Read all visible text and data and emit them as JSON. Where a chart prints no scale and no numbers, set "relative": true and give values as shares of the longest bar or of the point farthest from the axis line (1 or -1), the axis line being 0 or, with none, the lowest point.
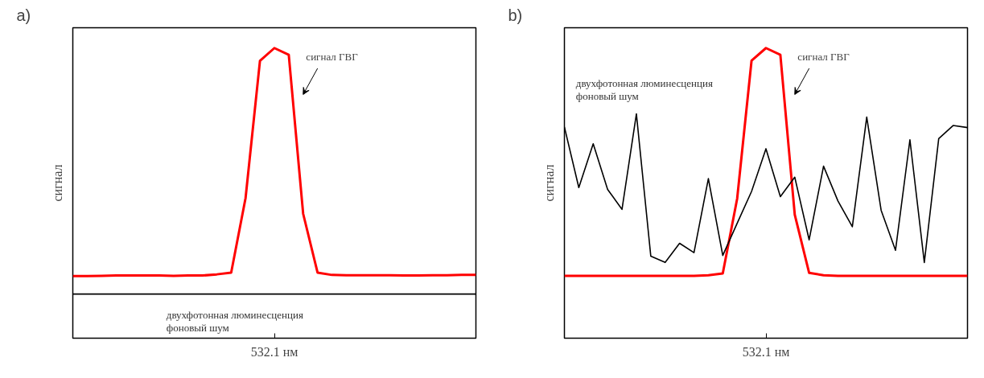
{
  "chart_data": [
    {
      "type": "line",
      "title": "a)",
      "ylabel": "сигнал",
      "xlabel": "532.1 нм",
      "relative": true,
      "grid": false,
      "categories": [
        null,
        null,
        null,
        null,
        null,
        null,
        null,
        null,
        null,
        null,
        null,
        null,
        null,
        null,
        null,
        null,
        null,
        null,
        null,
        null,
        null,
        null,
        null,
        null,
        null,
        null,
        null,
        null,
        null
      ],
      "series": [
        {
          "color": "#ff0000",
          "values": [
            0.214,
            0.214,
            0.215,
            0.216,
            0.216,
            0.216,
            0.216,
            0.215,
            0.216,
            0.216,
            0.22,
            0.226,
            0.483,
            0.956,
            1,
            0.977,
            0.429,
            0.226,
            0.218,
            0.217,
            0.217,
            0.217,
            0.217,
            0.216,
            0.216,
            0.217,
            0.217,
            0.218,
            0.218
          ]
        },
        {
          "color": "#000000",
          "values": [
            0.152,
            0.152,
            0.152,
            0.152,
            0.152,
            0.152,
            0.152,
            0.152,
            0.152,
            0.152,
            0.152,
            0.152,
            0.152,
            0.152,
            0.152,
            0.152,
            0.152,
            0.152,
            0.152,
            0.152,
            0.152,
            0.152,
            0.152,
            0.152,
            0.152,
            0.152,
            0.152,
            0.152,
            0.152
          ]
        }
      ],
      "annotations": [
        "сигнал ГВГ",
        "двухфотонная люминесценция",
        "фоновый шум"
      ]
    },
    {
      "type": "line",
      "title": "b)",
      "ylabel": "сигнал",
      "xlabel": "532.1 нм",
      "relative": true,
      "grid": false,
      "categories": [
        null,
        null,
        null,
        null,
        null,
        null,
        null,
        null,
        null,
        null,
        null,
        null,
        null,
        null,
        null,
        null,
        null,
        null,
        null,
        null,
        null,
        null,
        null,
        null,
        null,
        null,
        null,
        null,
        null
      ],
      "series": [
        {
          "color": "#ff0000",
          "values": [
            0.215,
            0.215,
            0.215,
            0.215,
            0.215,
            0.215,
            0.215,
            0.215,
            0.215,
            0.215,
            0.217,
            0.223,
            0.481,
            0.957,
            1,
            0.977,
            0.426,
            0.225,
            0.217,
            0.215,
            0.215,
            0.215,
            0.215,
            0.215,
            0.215,
            0.215,
            0.215,
            0.215,
            0.215
          ]
        },
        {
          "color": "#000000",
          "values": [
            0.728,
            0.519,
            0.67,
            0.513,
            0.444,
            0.773,
            0.283,
            0.261,
            0.327,
            0.295,
            0.55,
            0.285,
            0.396,
            0.506,
            0.653,
            0.488,
            0.555,
            0.339,
            0.593,
            0.473,
            0.384,
            0.762,
            0.441,
            0.303,
            0.684,
            0.261,
            0.688,
            0.733,
            0.726
          ]
        }
      ],
      "annotations": [
        "сигнал ГВГ",
        "двухфотонная люминесценция",
        "фоновый шум"
      ]
    }
  ]
}
